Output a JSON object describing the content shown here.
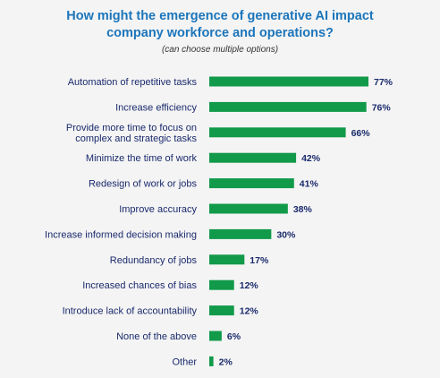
{
  "chart_data": {
    "type": "bar",
    "orientation": "horizontal",
    "title": "How might the emergence of generative AI impact company workforce and operations?",
    "title_lines": [
      "How might the emergence of generative AI impact",
      "company workforce and operations?"
    ],
    "subtitle": "(can choose multiple options)",
    "categories": [
      [
        "Automation of repetitive tasks"
      ],
      [
        "Increase efficiency"
      ],
      [
        "Provide more time to focus on",
        "complex and strategic tasks"
      ],
      [
        "Minimize the time of work"
      ],
      [
        "Redesign of work or jobs"
      ],
      [
        "Improve accuracy"
      ],
      [
        "Increase informed decision making"
      ],
      [
        "Redundancy of jobs"
      ],
      [
        "Increased chances of bias"
      ],
      [
        "Introduce lack of accountability"
      ],
      [
        "None of the above"
      ],
      [
        "Other"
      ]
    ],
    "values": [
      77,
      76,
      66,
      42,
      41,
      38,
      30,
      17,
      12,
      12,
      6,
      2
    ],
    "value_labels": [
      "77%",
      "76%",
      "66%",
      "42%",
      "41%",
      "38%",
      "30%",
      "17%",
      "12%",
      "12%",
      "6%",
      "2%"
    ],
    "xlim": [
      0,
      77
    ],
    "bar_color": "#119a4a",
    "label_color": "#1a2a6c",
    "title_color": "#1b75bb",
    "grid": false,
    "legend": "none"
  }
}
